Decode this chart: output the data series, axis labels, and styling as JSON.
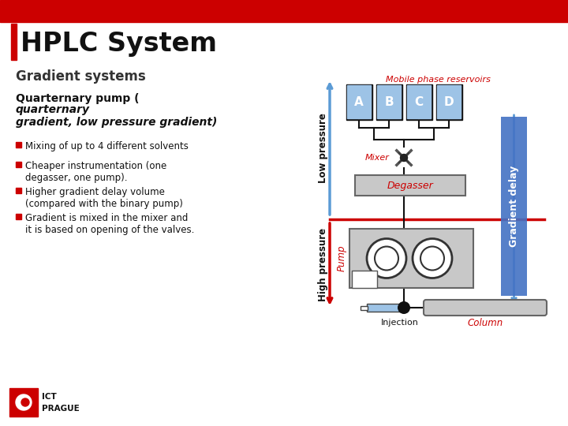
{
  "title": "HPLC System",
  "subtitle": "Gradient systems",
  "bg_color": "#ffffff",
  "red_color": "#cc0000",
  "blue_arrow_color": "#5b9bd5",
  "light_blue": "#9dc3e6",
  "gray": "#c8c8c8",
  "gradient_delay_color": "#4472c4",
  "black": "#111111",
  "reservoir_labels": [
    "A",
    "B",
    "C",
    "D"
  ],
  "bullet_texts": [
    "Mixing of up to 4 different solvents",
    "Cheaper instrumentation (one\ndegasser, one pump).",
    "Higher gradient delay volume\n(compared with the binary pump)",
    "Gradient is mixed in the mixer and\nit is based on opening of the valves."
  ]
}
